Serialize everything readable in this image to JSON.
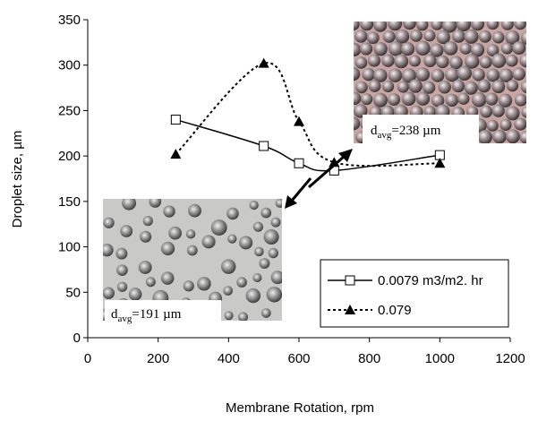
{
  "chart_data": {
    "type": "line",
    "x_label": "Membrane Rotation, rpm",
    "y_label": "Droplet size, µm",
    "xlim": [
      0,
      1200
    ],
    "xticks": [
      0,
      200,
      400,
      600,
      800,
      1000,
      1200
    ],
    "ylim": [
      0,
      350
    ],
    "yticks": [
      0,
      50,
      100,
      150,
      200,
      250,
      300,
      350
    ],
    "grid": false,
    "legend": "lower right",
    "series": [
      {
        "name": "0.0079 m3/m2. hr",
        "color": "#000000",
        "marker": "square",
        "dash": "solid",
        "x": [
          250,
          500,
          600,
          700,
          1000
        ],
        "values": [
          240,
          211,
          192,
          184,
          201
        ]
      },
      {
        "name": "0.079",
        "color": "#000000",
        "marker": "triangle",
        "dash": "dotted",
        "x": [
          250,
          500,
          600,
          700,
          1000
        ],
        "values": [
          202,
          302,
          238,
          193,
          192
        ]
      }
    ],
    "annotations": [
      {
        "main": "d",
        "subscript": "avg",
        "rest": "=238 µm"
      },
      {
        "main": "d",
        "subscript": "avg",
        "rest": "=191 µm"
      }
    ]
  }
}
